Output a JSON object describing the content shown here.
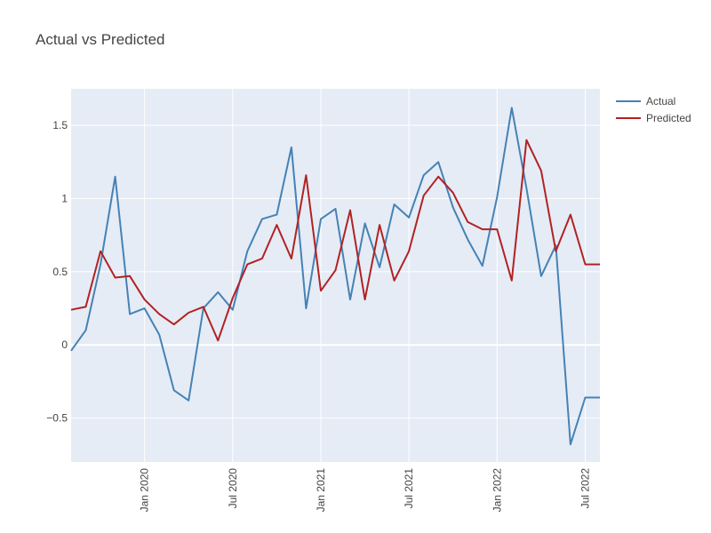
{
  "chart_data": {
    "type": "line",
    "title": "Actual vs Predicted",
    "xlabel": "",
    "ylabel": "",
    "x": [
      "2019-08",
      "2019-09",
      "2019-10",
      "2019-11",
      "2019-12",
      "2020-01",
      "2020-02",
      "2020-03",
      "2020-04",
      "2020-05",
      "2020-06",
      "2020-07",
      "2020-08",
      "2020-09",
      "2020-10",
      "2020-11",
      "2020-12",
      "2021-01",
      "2021-02",
      "2021-03",
      "2021-04",
      "2021-05",
      "2021-06",
      "2021-07",
      "2021-08",
      "2021-09",
      "2021-10",
      "2021-11",
      "2021-12",
      "2022-01",
      "2022-02",
      "2022-03",
      "2022-04",
      "2022-05",
      "2022-06",
      "2022-07",
      "2022-08"
    ],
    "x_range": [
      "2019-08",
      "2022-08"
    ],
    "ylim": [
      -0.8,
      1.75
    ],
    "x_ticks": [
      {
        "label": "Jan 2020",
        "value": "2020-01"
      },
      {
        "label": "Jul 2020",
        "value": "2020-07"
      },
      {
        "label": "Jan 2021",
        "value": "2021-01"
      },
      {
        "label": "Jul 2021",
        "value": "2021-07"
      },
      {
        "label": "Jan 2022",
        "value": "2022-01"
      },
      {
        "label": "Jul 2022",
        "value": "2022-07"
      }
    ],
    "y_ticks": [
      {
        "label": "−0.5",
        "value": -0.5
      },
      {
        "label": "0",
        "value": 0
      },
      {
        "label": "0.5",
        "value": 0.5
      },
      {
        "label": "1",
        "value": 1
      },
      {
        "label": "1.5",
        "value": 1.5
      }
    ],
    "grid": true,
    "legend_position": "top-right",
    "background_color": "#e5ecf6",
    "series": [
      {
        "name": "Actual",
        "color": "#4682b4",
        "values": [
          -0.04,
          0.1,
          0.55,
          1.15,
          0.21,
          0.25,
          0.07,
          -0.31,
          -0.38,
          0.25,
          0.36,
          0.24,
          0.64,
          0.86,
          0.89,
          1.35,
          0.25,
          0.86,
          0.93,
          0.31,
          0.83,
          0.53,
          0.96,
          0.87,
          1.16,
          1.25,
          0.94,
          0.72,
          0.54,
          1.01,
          1.62,
          1.07,
          0.47,
          0.68,
          -0.68,
          -0.36,
          -0.36
        ]
      },
      {
        "name": "Predicted",
        "color": "#b22222",
        "values": [
          0.24,
          0.26,
          0.64,
          0.46,
          0.47,
          0.31,
          0.21,
          0.14,
          0.22,
          0.26,
          0.03,
          0.32,
          0.55,
          0.59,
          0.82,
          0.59,
          1.16,
          0.37,
          0.51,
          0.92,
          0.31,
          0.82,
          0.44,
          0.64,
          1.02,
          1.15,
          1.04,
          0.84,
          0.79,
          0.79,
          0.44,
          1.4,
          1.19,
          0.64,
          0.89,
          0.55,
          0.55
        ]
      }
    ]
  }
}
